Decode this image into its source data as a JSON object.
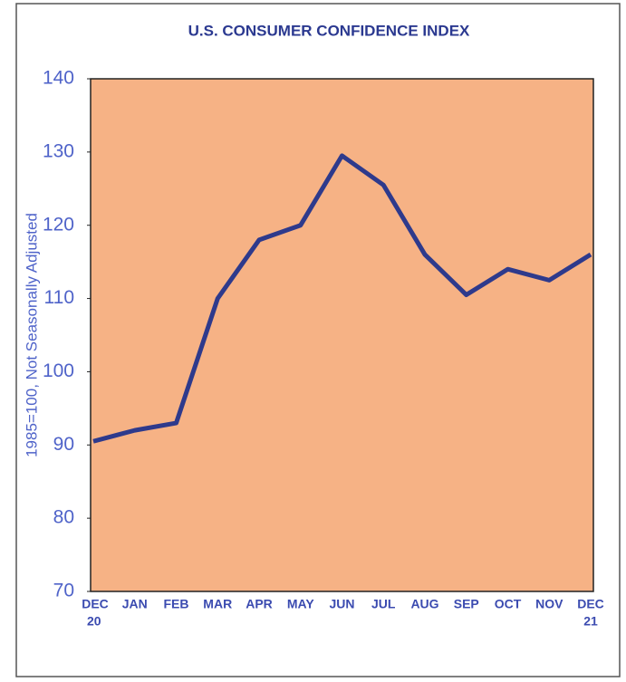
{
  "chart_data": {
    "type": "line",
    "title": "U.S. CONSUMER CONFIDENCE INDEX",
    "y_label": "1985=100, Not Seasonally Adjusted",
    "categories": [
      "DEC",
      "JAN",
      "FEB",
      "MAR",
      "APR",
      "MAY",
      "JUN",
      "JUL",
      "AUG",
      "SEP",
      "OCT",
      "NOV",
      "DEC"
    ],
    "year_labels": [
      "20",
      null,
      null,
      null,
      null,
      null,
      null,
      null,
      null,
      null,
      null,
      null,
      "21"
    ],
    "series": [
      {
        "name": "Consumer Confidence Index",
        "color": "#2e3a8c",
        "values": [
          90.5,
          92,
          93,
          110,
          118,
          120,
          129.5,
          125.5,
          116,
          110.5,
          114,
          112.5,
          116
        ]
      }
    ],
    "ylim": [
      70,
      140
    ],
    "yticks": [
      70,
      80,
      90,
      100,
      110,
      120,
      130,
      140
    ],
    "plot_color": "#f6b285"
  }
}
